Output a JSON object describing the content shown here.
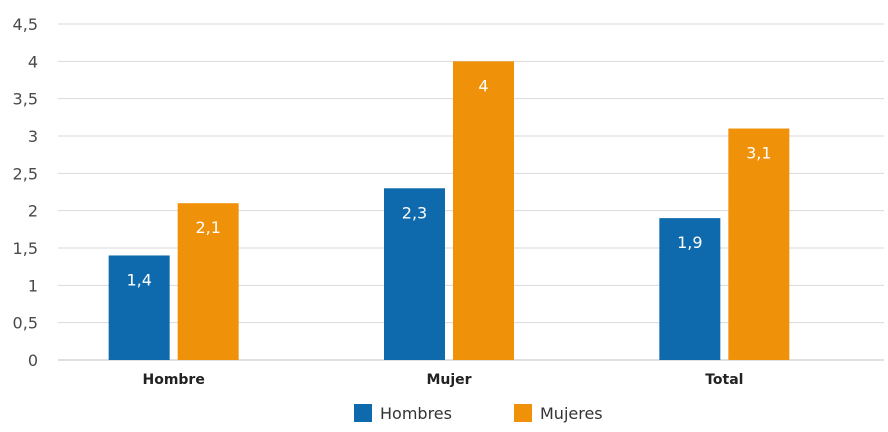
{
  "chart_data": {
    "type": "bar",
    "categories": [
      "Hombre",
      "Mujer",
      "Total"
    ],
    "series": [
      {
        "name": "Hombres",
        "values": [
          1.4,
          2.3,
          1.9
        ],
        "labels": [
          "1,4",
          "2,3",
          "1,9"
        ],
        "color": "#0e6aad"
      },
      {
        "name": "Mujeres",
        "values": [
          2.1,
          4,
          3.1
        ],
        "labels": [
          "2,1",
          "4",
          "3,1"
        ],
        "color": "#f0910a"
      }
    ],
    "ylim": [
      0,
      4.5
    ],
    "yticks": [
      {
        "value": 0,
        "label": "0"
      },
      {
        "value": 0.5,
        "label": "0,5"
      },
      {
        "value": 1,
        "label": "1"
      },
      {
        "value": 1.5,
        "label": "1,5"
      },
      {
        "value": 2,
        "label": "2"
      },
      {
        "value": 2.5,
        "label": "2,5"
      },
      {
        "value": 3,
        "label": "3"
      },
      {
        "value": 3.5,
        "label": "3,5"
      },
      {
        "value": 4,
        "label": "4"
      },
      {
        "value": 4.5,
        "label": "4,5"
      }
    ],
    "grid": true,
    "legend_position": "bottom-center",
    "gridline_color": "#d9d9d9",
    "axis_color": "#bfbfbf"
  }
}
